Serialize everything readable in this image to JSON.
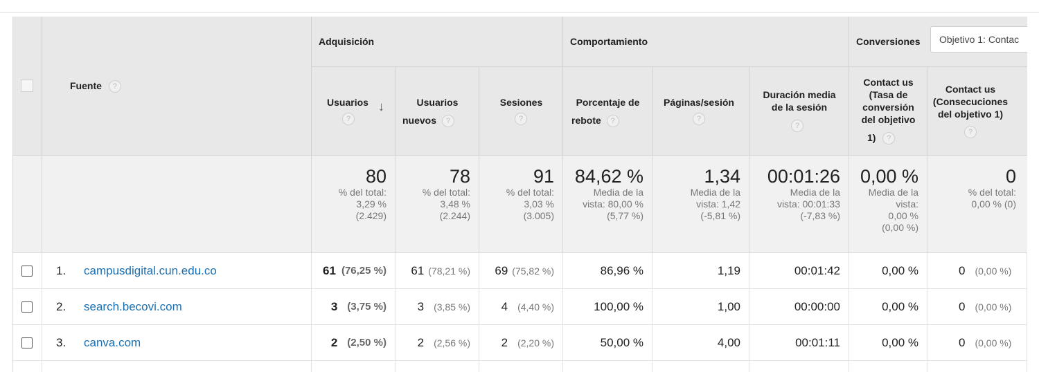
{
  "header": {
    "groups": {
      "acquisition": "Adquisición",
      "behavior": "Comportamiento",
      "conversions": "Conversiones"
    },
    "goal_select": "Objetivo 1: Contac",
    "source_label": "Fuente",
    "help_glyph": "?",
    "columns": {
      "users": "Usuarios",
      "new_users_1": "Usuarios",
      "new_users_2": "nuevos",
      "sessions": "Sesiones",
      "bounce_1": "Porcentaje de",
      "bounce_2": "rebote",
      "pages": "Páginas/sesión",
      "duration_1": "Duración media",
      "duration_2": "de la sesión",
      "conv_rate_1": "Contact us",
      "conv_rate_2": "(Tasa de",
      "conv_rate_3": "conversión",
      "conv_rate_4": "del objetivo",
      "conv_rate_5": "1)",
      "completions_1": "Contact us",
      "completions_2": "(Consecuciones",
      "completions_3": "del objetivo 1)"
    }
  },
  "totals": {
    "users": {
      "value": "80",
      "l1": "% del total:",
      "l2": "3,29 %",
      "l3": "(2.429)"
    },
    "new_users": {
      "value": "78",
      "l1": "% del total:",
      "l2": "3,48 %",
      "l3": "(2.244)"
    },
    "sessions": {
      "value": "91",
      "l1": "% del total:",
      "l2": "3,03 %",
      "l3": "(3.005)"
    },
    "bounce": {
      "value": "84,62 %",
      "l1": "Media de la",
      "l2": "vista: 80,00 %",
      "l3": "(5,77 %)"
    },
    "pages": {
      "value": "1,34",
      "l1": "Media de la",
      "l2": "vista: 1,42",
      "l3": "(-5,81 %)"
    },
    "duration": {
      "value": "00:01:26",
      "l1": "Media de la",
      "l2": "vista: 00:01:33",
      "l3": "(-7,83 %)"
    },
    "conv_rate": {
      "value": "0,00 %",
      "l1": "Media de la",
      "l2": "vista:",
      "l3": "0,00 %",
      "l4": "(0,00 %)"
    },
    "completions": {
      "value": "0",
      "l1": "% del total:",
      "l2": "0,00 % (0)"
    }
  },
  "rows": [
    {
      "index": "1.",
      "source": "campusdigital.cun.edu.co",
      "users": "61",
      "users_pct": "(76,25 %)",
      "new_users": "61",
      "new_users_pct": "(78,21 %)",
      "sessions": "69",
      "sessions_pct": "(75,82 %)",
      "bounce": "86,96 %",
      "pages": "1,19",
      "duration": "00:01:42",
      "conv_rate": "0,00 %",
      "completions": "0",
      "completions_pct": "(0,00 %)"
    },
    {
      "index": "2.",
      "source": "search.becovi.com",
      "users": "3",
      "users_pct": "(3,75 %)",
      "new_users": "3",
      "new_users_pct": "(3,85 %)",
      "sessions": "4",
      "sessions_pct": "(4,40 %)",
      "bounce": "100,00 %",
      "pages": "1,00",
      "duration": "00:00:00",
      "conv_rate": "0,00 %",
      "completions": "0",
      "completions_pct": "(0,00 %)"
    },
    {
      "index": "3.",
      "source": "canva.com",
      "users": "2",
      "users_pct": "(2,50 %)",
      "new_users": "2",
      "new_users_pct": "(2,56 %)",
      "sessions": "2",
      "sessions_pct": "(2,20 %)",
      "bounce": "50,00 %",
      "pages": "4,00",
      "duration": "00:01:11",
      "conv_rate": "0,00 %",
      "completions": "0",
      "completions_pct": "(0,00 %)"
    }
  ]
}
